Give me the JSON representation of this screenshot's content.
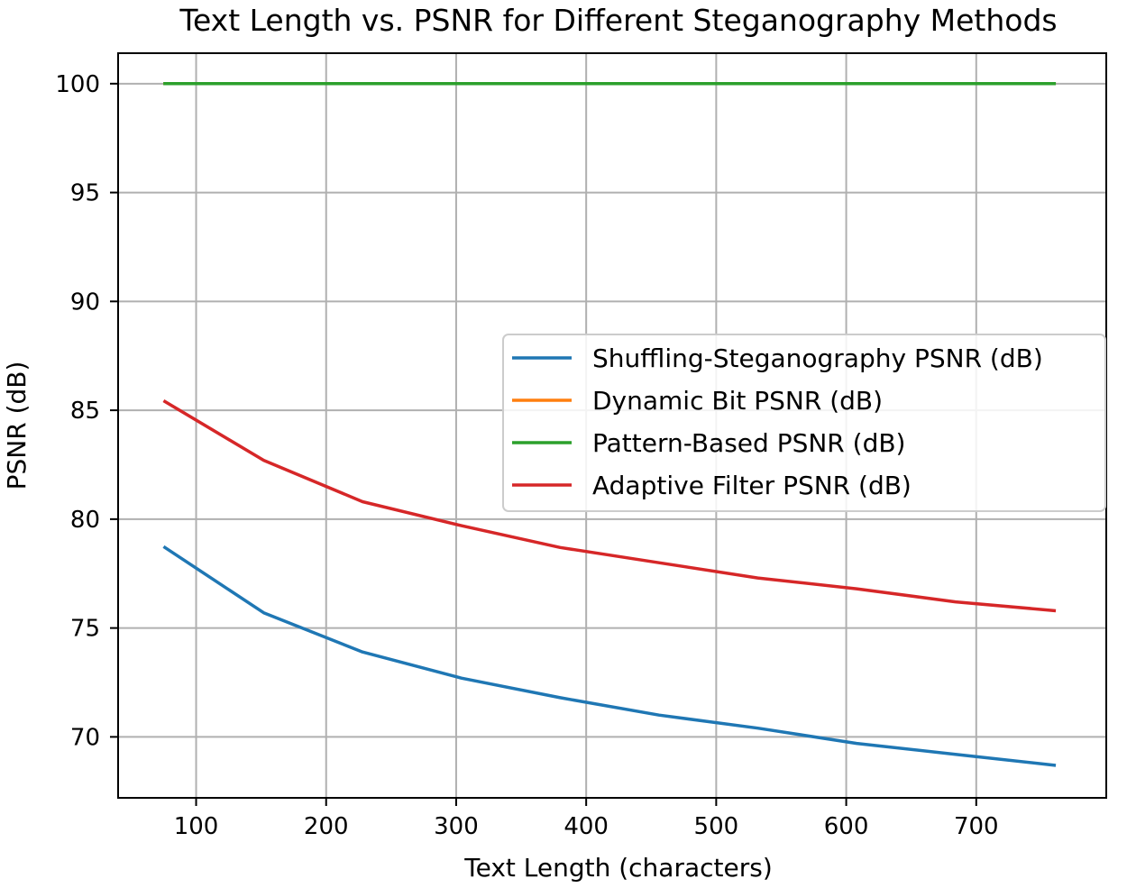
{
  "chart_data": {
    "type": "line",
    "title": "Text Length vs. PSNR for Different Steganography Methods",
    "xlabel": "Text Length (characters)",
    "ylabel": "PSNR (dB)",
    "xlim": [
      40,
      800
    ],
    "ylim": [
      67.2,
      101.4
    ],
    "xticks": [
      100,
      200,
      300,
      400,
      500,
      600,
      700
    ],
    "yticks": [
      70,
      75,
      80,
      85,
      90,
      95,
      100
    ],
    "grid": true,
    "legend_position": "center-right",
    "x": [
      76,
      152,
      228,
      304,
      380,
      456,
      532,
      608,
      684,
      760
    ],
    "series": [
      {
        "name": "Shuffling-Steganography PSNR (dB)",
        "color": "#1f77b4",
        "values": [
          78.7,
          75.7,
          73.9,
          72.7,
          71.8,
          71.0,
          70.4,
          69.7,
          69.2,
          68.7
        ]
      },
      {
        "name": "Dynamic Bit PSNR (dB)",
        "color": "#ff7f0e",
        "values": [
          100,
          100,
          100,
          100,
          100,
          100,
          100,
          100,
          100,
          100
        ]
      },
      {
        "name": "Pattern-Based PSNR (dB)",
        "color": "#2ca02c",
        "values": [
          100,
          100,
          100,
          100,
          100,
          100,
          100,
          100,
          100,
          100
        ]
      },
      {
        "name": "Adaptive Filter PSNR (dB)",
        "color": "#d62728",
        "values": [
          85.4,
          82.7,
          80.8,
          79.7,
          78.7,
          78.0,
          77.3,
          76.8,
          76.2,
          75.8
        ]
      }
    ]
  }
}
